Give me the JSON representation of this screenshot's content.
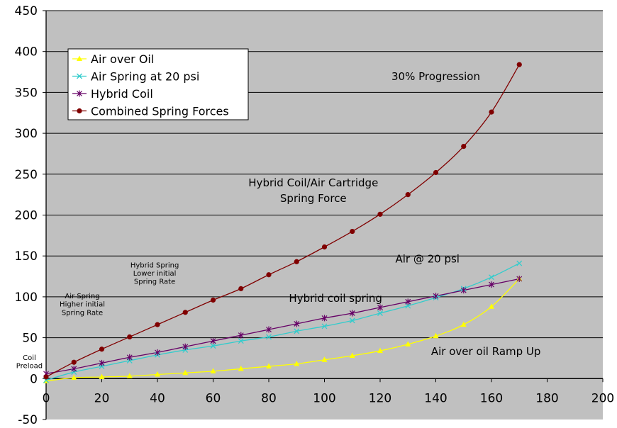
{
  "chart_data": {
    "type": "line",
    "xlim": [
      0,
      200
    ],
    "ylim": [
      -50,
      450
    ],
    "x_ticks": [
      0,
      20,
      40,
      60,
      80,
      100,
      120,
      140,
      160,
      180,
      200
    ],
    "y_ticks": [
      -50,
      0,
      50,
      100,
      150,
      200,
      250,
      300,
      350,
      400,
      450
    ],
    "grid": {
      "horizontal": true,
      "vertical": false
    },
    "legend_position": "top-left",
    "plot_background": "#c0c0c0",
    "series": [
      {
        "name": "Air over Oil",
        "color": "#ffff00",
        "marker": "triangle",
        "x": [
          0,
          10,
          20,
          30,
          40,
          50,
          60,
          70,
          80,
          90,
          100,
          110,
          120,
          130,
          140,
          150,
          160,
          170
        ],
        "y": [
          -3,
          1,
          2,
          3,
          5,
          7,
          9,
          12,
          15,
          18,
          23,
          28,
          34,
          42,
          52,
          66,
          88,
          122
        ]
      },
      {
        "name": "Air Spring at 20 psi",
        "color": "#33cccc",
        "marker": "x",
        "x": [
          0,
          10,
          20,
          30,
          40,
          50,
          60,
          70,
          80,
          90,
          100,
          110,
          120,
          130,
          140,
          150,
          160,
          170
        ],
        "y": [
          -2,
          8,
          15,
          22,
          29,
          35,
          40,
          46,
          51,
          58,
          64,
          71,
          80,
          89,
          99,
          110,
          124,
          141
        ]
      },
      {
        "name": "Hybrid Coil",
        "color": "#660066",
        "marker": "star",
        "x": [
          0,
          10,
          20,
          30,
          40,
          50,
          60,
          70,
          80,
          90,
          100,
          110,
          120,
          130,
          140,
          150,
          160,
          170
        ],
        "y": [
          6,
          12,
          19,
          26,
          32,
          39,
          46,
          53,
          60,
          67,
          74,
          80,
          87,
          94,
          101,
          108,
          115,
          122
        ]
      },
      {
        "name": "Combined Spring Forces",
        "color": "#800000",
        "marker": "circle",
        "x": [
          0,
          10,
          20,
          30,
          40,
          50,
          60,
          70,
          80,
          90,
          100,
          110,
          120,
          130,
          140,
          150,
          160,
          170
        ],
        "y": [
          2,
          20,
          36,
          51,
          66,
          81,
          96,
          110,
          127,
          143,
          161,
          180,
          201,
          225,
          252,
          284,
          326,
          384
        ]
      }
    ],
    "annotations": [
      {
        "id": "progression",
        "text": "30% Progression",
        "x": 140,
        "y": 365
      },
      {
        "id": "hybrid-cartridge-line1",
        "text": "Hybrid Coil/Air Cartridge",
        "x": 96,
        "y": 235
      },
      {
        "id": "hybrid-cartridge-line2",
        "text": "Spring Force",
        "x": 96,
        "y": 216
      },
      {
        "id": "air20",
        "text": "Air @ 20 psi",
        "x": 137,
        "y": 142
      },
      {
        "id": "hybrid-coil-spring",
        "text": "Hybrid coil spring",
        "x": 104,
        "y": 94
      },
      {
        "id": "air-oil-ramp",
        "text": "Air over oil Ramp Up",
        "x": 158,
        "y": 29
      },
      {
        "id": "hybrid-lower-1",
        "text": "Hybrid Spring",
        "x": 39,
        "y": 136
      },
      {
        "id": "hybrid-lower-2",
        "text": "Lower initial",
        "x": 39,
        "y": 126
      },
      {
        "id": "hybrid-lower-3",
        "text": "Spring Rate",
        "x": 39,
        "y": 116
      },
      {
        "id": "air-higher-1",
        "text": "Air Spring",
        "x": 13,
        "y": 98
      },
      {
        "id": "air-higher-2",
        "text": "Higher initial",
        "x": 13,
        "y": 88
      },
      {
        "id": "air-higher-3",
        "text": "Spring Rate",
        "x": 13,
        "y": 78
      },
      {
        "id": "coil-preload-1",
        "text": "Coil",
        "x": -6,
        "y": 23
      },
      {
        "id": "coil-preload-2",
        "text": "Preload",
        "x": -6,
        "y": 13
      }
    ]
  }
}
